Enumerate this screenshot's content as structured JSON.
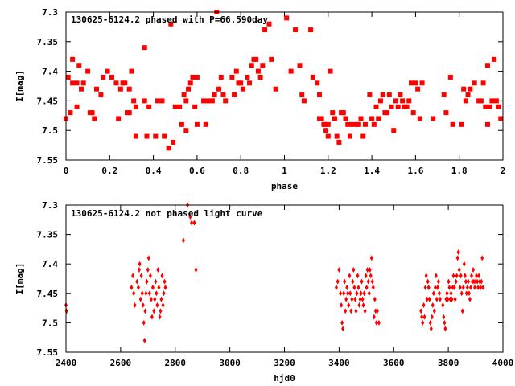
{
  "chart_data": [
    {
      "type": "scatter",
      "title": "130625-6124.2 phased with P=66.590day",
      "xlabel": "phase",
      "ylabel": "I[mag]",
      "xlim": [
        0,
        2
      ],
      "ylim": [
        7.3,
        7.55
      ],
      "y_inverted": true,
      "xticks": [
        "0",
        "0.2",
        "0.4",
        "0.6",
        "0.8",
        "1",
        "1.2",
        "1.4",
        "1.6",
        "1.8",
        "2"
      ],
      "xtick_values": [
        0,
        0.2,
        0.4,
        0.6,
        0.8,
        1.0,
        1.2,
        1.4,
        1.6,
        1.8,
        2.0
      ],
      "yticks": [
        "7.3",
        "7.35",
        "7.4",
        "7.45",
        "7.5",
        "7.55"
      ],
      "ytick_values": [
        7.3,
        7.35,
        7.4,
        7.45,
        7.5,
        7.55
      ],
      "grid": false,
      "color": "#ff0000",
      "marker": "filled-square-cross",
      "points": [
        [
          0.0,
          7.48
        ],
        [
          0.01,
          7.41
        ],
        [
          0.02,
          7.47
        ],
        [
          0.03,
          7.38
        ],
        [
          0.03,
          7.42
        ],
        [
          0.05,
          7.46
        ],
        [
          0.05,
          7.42
        ],
        [
          0.06,
          7.39
        ],
        [
          0.07,
          7.43
        ],
        [
          0.08,
          7.42
        ],
        [
          0.1,
          7.4
        ],
        [
          0.11,
          7.47
        ],
        [
          0.12,
          7.47
        ],
        [
          0.13,
          7.48
        ],
        [
          0.14,
          7.43
        ],
        [
          0.16,
          7.44
        ],
        [
          0.17,
          7.41
        ],
        [
          0.19,
          7.4
        ],
        [
          0.21,
          7.41
        ],
        [
          0.23,
          7.42
        ],
        [
          0.24,
          7.48
        ],
        [
          0.25,
          7.43
        ],
        [
          0.26,
          7.42
        ],
        [
          0.27,
          7.42
        ],
        [
          0.28,
          7.47
        ],
        [
          0.29,
          7.47
        ],
        [
          0.29,
          7.43
        ],
        [
          0.3,
          7.4
        ],
        [
          0.31,
          7.45
        ],
        [
          0.32,
          7.46
        ],
        [
          0.32,
          7.51
        ],
        [
          0.36,
          7.36
        ],
        [
          0.36,
          7.45
        ],
        [
          0.37,
          7.51
        ],
        [
          0.38,
          7.46
        ],
        [
          0.41,
          7.51
        ],
        [
          0.42,
          7.45
        ],
        [
          0.44,
          7.45
        ],
        [
          0.45,
          7.51
        ],
        [
          0.47,
          7.53
        ],
        [
          0.49,
          7.52
        ],
        [
          0.5,
          7.46
        ],
        [
          0.48,
          7.32
        ],
        [
          0.52,
          7.46
        ],
        [
          0.53,
          7.49
        ],
        [
          0.54,
          7.44
        ],
        [
          0.55,
          7.45
        ],
        [
          0.55,
          7.5
        ],
        [
          0.56,
          7.43
        ],
        [
          0.57,
          7.42
        ],
        [
          0.58,
          7.41
        ],
        [
          0.59,
          7.46
        ],
        [
          0.6,
          7.41
        ],
        [
          0.6,
          7.49
        ],
        [
          0.63,
          7.45
        ],
        [
          0.64,
          7.49
        ],
        [
          0.65,
          7.45
        ],
        [
          0.67,
          7.45
        ],
        [
          0.68,
          7.44
        ],
        [
          0.69,
          7.3
        ],
        [
          0.7,
          7.43
        ],
        [
          0.71,
          7.41
        ],
        [
          0.72,
          7.44
        ],
        [
          0.73,
          7.45
        ],
        [
          0.76,
          7.41
        ],
        [
          0.77,
          7.44
        ],
        [
          0.78,
          7.4
        ],
        [
          0.79,
          7.42
        ],
        [
          0.8,
          7.42
        ],
        [
          0.81,
          7.43
        ],
        [
          0.83,
          7.41
        ],
        [
          0.84,
          7.42
        ],
        [
          0.85,
          7.39
        ],
        [
          0.86,
          7.38
        ],
        [
          0.87,
          7.38
        ],
        [
          0.88,
          7.4
        ],
        [
          0.89,
          7.41
        ],
        [
          0.9,
          7.39
        ],
        [
          0.91,
          7.33
        ],
        [
          0.93,
          7.32
        ],
        [
          0.94,
          7.38
        ],
        [
          0.96,
          7.43
        ],
        [
          1.01,
          7.31
        ],
        [
          1.03,
          7.4
        ],
        [
          1.05,
          7.33
        ],
        [
          1.07,
          7.39
        ],
        [
          1.08,
          7.44
        ],
        [
          1.09,
          7.45
        ],
        [
          1.12,
          7.33
        ],
        [
          1.13,
          7.41
        ],
        [
          1.15,
          7.42
        ],
        [
          1.16,
          7.48
        ],
        [
          1.16,
          7.44
        ],
        [
          1.17,
          7.48
        ],
        [
          1.18,
          7.49
        ],
        [
          1.19,
          7.5
        ],
        [
          1.19,
          7.49
        ],
        [
          1.2,
          7.49
        ],
        [
          1.2,
          7.51
        ],
        [
          1.21,
          7.4
        ],
        [
          1.22,
          7.47
        ],
        [
          1.23,
          7.48
        ],
        [
          1.24,
          7.51
        ],
        [
          1.25,
          7.52
        ],
        [
          1.26,
          7.47
        ],
        [
          1.27,
          7.47
        ],
        [
          1.28,
          7.48
        ],
        [
          1.29,
          7.49
        ],
        [
          1.3,
          7.51
        ],
        [
          1.31,
          7.49
        ],
        [
          1.33,
          7.49
        ],
        [
          1.34,
          7.49
        ],
        [
          1.35,
          7.48
        ],
        [
          1.36,
          7.51
        ],
        [
          1.37,
          7.49
        ],
        [
          1.39,
          7.44
        ],
        [
          1.4,
          7.48
        ],
        [
          1.41,
          7.49
        ],
        [
          1.42,
          7.46
        ],
        [
          1.43,
          7.48
        ],
        [
          1.44,
          7.45
        ],
        [
          1.45,
          7.44
        ],
        [
          1.46,
          7.47
        ],
        [
          1.47,
          7.47
        ],
        [
          1.48,
          7.44
        ],
        [
          1.49,
          7.46
        ],
        [
          1.5,
          7.5
        ],
        [
          1.51,
          7.45
        ],
        [
          1.52,
          7.46
        ],
        [
          1.53,
          7.44
        ],
        [
          1.54,
          7.45
        ],
        [
          1.55,
          7.46
        ],
        [
          1.56,
          7.46
        ],
        [
          1.57,
          7.45
        ],
        [
          1.58,
          7.42
        ],
        [
          1.59,
          7.47
        ],
        [
          1.6,
          7.42
        ],
        [
          1.62,
          7.48
        ],
        [
          1.63,
          7.42
        ],
        [
          1.61,
          7.43
        ],
        [
          1.68,
          7.48
        ],
        [
          1.73,
          7.44
        ],
        [
          1.74,
          7.47
        ],
        [
          1.76,
          7.41
        ],
        [
          1.77,
          7.49
        ],
        [
          1.81,
          7.49
        ],
        [
          1.82,
          7.43
        ],
        [
          1.83,
          7.45
        ],
        [
          1.84,
          7.44
        ],
        [
          1.85,
          7.43
        ],
        [
          1.87,
          7.42
        ],
        [
          1.89,
          7.45
        ],
        [
          1.9,
          7.45
        ],
        [
          1.91,
          7.42
        ],
        [
          1.92,
          7.46
        ],
        [
          1.93,
          7.49
        ],
        [
          1.94,
          7.46
        ],
        [
          1.95,
          7.45
        ],
        [
          1.96,
          7.38
        ],
        [
          1.97,
          7.45
        ],
        [
          1.98,
          7.46
        ],
        [
          1.99,
          7.48
        ],
        [
          1.93,
          7.39
        ]
      ]
    },
    {
      "type": "scatter",
      "title": "130625-6124.2 not phased light curve",
      "xlabel": "hjd0",
      "ylabel": "I[mag]",
      "xlim": [
        2400,
        4000
      ],
      "ylim": [
        7.3,
        7.55
      ],
      "y_inverted": true,
      "xticks": [
        "2400",
        "2600",
        "2800",
        "3000",
        "3200",
        "3400",
        "3600",
        "3800",
        "4000"
      ],
      "xtick_values": [
        2400,
        2600,
        2800,
        3000,
        3200,
        3400,
        3600,
        3800,
        4000
      ],
      "yticks": [
        "7.3",
        "7.35",
        "7.4",
        "7.45",
        "7.5",
        "7.55"
      ],
      "ytick_values": [
        7.3,
        7.35,
        7.4,
        7.45,
        7.5,
        7.55
      ],
      "grid": false,
      "color": "#ff0000",
      "marker": "filled-diamond",
      "points": [
        [
          2400,
          7.47
        ],
        [
          2402,
          7.48
        ],
        [
          2640,
          7.44
        ],
        [
          2645,
          7.42
        ],
        [
          2648,
          7.45
        ],
        [
          2652,
          7.47
        ],
        [
          2660,
          7.43
        ],
        [
          2665,
          7.44
        ],
        [
          2668,
          7.41
        ],
        [
          2670,
          7.4
        ],
        [
          2673,
          7.46
        ],
        [
          2676,
          7.42
        ],
        [
          2679,
          7.45
        ],
        [
          2682,
          7.47
        ],
        [
          2685,
          7.5
        ],
        [
          2688,
          7.53
        ],
        [
          2690,
          7.48
        ],
        [
          2693,
          7.45
        ],
        [
          2696,
          7.43
        ],
        [
          2700,
          7.41
        ],
        [
          2703,
          7.39
        ],
        [
          2706,
          7.45
        ],
        [
          2709,
          7.42
        ],
        [
          2712,
          7.46
        ],
        [
          2715,
          7.49
        ],
        [
          2718,
          7.44
        ],
        [
          2722,
          7.48
        ],
        [
          2725,
          7.46
        ],
        [
          2728,
          7.43
        ],
        [
          2731,
          7.45
        ],
        [
          2734,
          7.47
        ],
        [
          2737,
          7.41
        ],
        [
          2740,
          7.44
        ],
        [
          2743,
          7.49
        ],
        [
          2746,
          7.48
        ],
        [
          2749,
          7.46
        ],
        [
          2752,
          7.42
        ],
        [
          2755,
          7.47
        ],
        [
          2758,
          7.45
        ],
        [
          2761,
          7.43
        ],
        [
          2764,
          7.44
        ],
        [
          2830,
          7.36
        ],
        [
          2845,
          7.3
        ],
        [
          2855,
          7.32
        ],
        [
          2860,
          7.33
        ],
        [
          2870,
          7.33
        ],
        [
          2876,
          7.41
        ],
        [
          3390,
          7.44
        ],
        [
          3395,
          7.43
        ],
        [
          3400,
          7.41
        ],
        [
          3405,
          7.45
        ],
        [
          3408,
          7.47
        ],
        [
          3411,
          7.5
        ],
        [
          3414,
          7.51
        ],
        [
          3417,
          7.45
        ],
        [
          3420,
          7.43
        ],
        [
          3423,
          7.48
        ],
        [
          3426,
          7.46
        ],
        [
          3429,
          7.44
        ],
        [
          3432,
          7.45
        ],
        [
          3435,
          7.47
        ],
        [
          3438,
          7.42
        ],
        [
          3441,
          7.45
        ],
        [
          3444,
          7.48
        ],
        [
          3447,
          7.46
        ],
        [
          3450,
          7.43
        ],
        [
          3453,
          7.41
        ],
        [
          3456,
          7.44
        ],
        [
          3459,
          7.46
        ],
        [
          3462,
          7.48
        ],
        [
          3465,
          7.45
        ],
        [
          3468,
          7.42
        ],
        [
          3471,
          7.44
        ],
        [
          3474,
          7.47
        ],
        [
          3477,
          7.46
        ],
        [
          3480,
          7.45
        ],
        [
          3483,
          7.43
        ],
        [
          3486,
          7.46
        ],
        [
          3489,
          7.47
        ],
        [
          3492,
          7.45
        ],
        [
          3495,
          7.48
        ],
        [
          3498,
          7.42
        ],
        [
          3501,
          7.44
        ],
        [
          3504,
          7.41
        ],
        [
          3507,
          7.43
        ],
        [
          3510,
          7.45
        ],
        [
          3513,
          7.41
        ],
        [
          3516,
          7.42
        ],
        [
          3519,
          7.39
        ],
        [
          3522,
          7.43
        ],
        [
          3525,
          7.44
        ],
        [
          3528,
          7.49
        ],
        [
          3531,
          7.46
        ],
        [
          3534,
          7.48
        ],
        [
          3537,
          7.5
        ],
        [
          3540,
          7.48
        ],
        [
          3546,
          7.5
        ],
        [
          3700,
          7.48
        ],
        [
          3703,
          7.49
        ],
        [
          3706,
          7.5
        ],
        [
          3710,
          7.47
        ],
        [
          3713,
          7.49
        ],
        [
          3716,
          7.44
        ],
        [
          3719,
          7.42
        ],
        [
          3722,
          7.46
        ],
        [
          3725,
          7.43
        ],
        [
          3728,
          7.44
        ],
        [
          3731,
          7.46
        ],
        [
          3734,
          7.5
        ],
        [
          3737,
          7.51
        ],
        [
          3740,
          7.49
        ],
        [
          3743,
          7.47
        ],
        [
          3746,
          7.45
        ],
        [
          3749,
          7.48
        ],
        [
          3752,
          7.44
        ],
        [
          3755,
          7.42
        ],
        [
          3758,
          7.46
        ],
        [
          3761,
          7.44
        ],
        [
          3764,
          7.43
        ],
        [
          3767,
          7.45
        ],
        [
          3770,
          7.46
        ],
        [
          3780,
          7.47
        ],
        [
          3783,
          7.49
        ],
        [
          3786,
          7.5
        ],
        [
          3789,
          7.51
        ],
        [
          3792,
          7.46
        ],
        [
          3795,
          7.45
        ],
        [
          3798,
          7.46
        ],
        [
          3801,
          7.43
        ],
        [
          3804,
          7.44
        ],
        [
          3807,
          7.46
        ],
        [
          3810,
          7.45
        ],
        [
          3813,
          7.46
        ],
        [
          3816,
          7.44
        ],
        [
          3819,
          7.42
        ],
        [
          3822,
          7.44
        ],
        [
          3825,
          7.46
        ],
        [
          3828,
          7.43
        ],
        [
          3831,
          7.42
        ],
        [
          3834,
          7.39
        ],
        [
          3837,
          7.38
        ],
        [
          3840,
          7.41
        ],
        [
          3843,
          7.44
        ],
        [
          3846,
          7.42
        ],
        [
          3849,
          7.45
        ],
        [
          3852,
          7.48
        ],
        [
          3855,
          7.44
        ],
        [
          3858,
          7.4
        ],
        [
          3861,
          7.42
        ],
        [
          3864,
          7.43
        ],
        [
          3867,
          7.45
        ],
        [
          3870,
          7.44
        ],
        [
          3873,
          7.43
        ],
        [
          3876,
          7.45
        ],
        [
          3879,
          7.46
        ],
        [
          3882,
          7.44
        ],
        [
          3885,
          7.42
        ],
        [
          3888,
          7.43
        ],
        [
          3891,
          7.41
        ],
        [
          3894,
          7.43
        ],
        [
          3897,
          7.44
        ],
        [
          3900,
          7.43
        ],
        [
          3903,
          7.42
        ],
        [
          3906,
          7.43
        ],
        [
          3909,
          7.44
        ],
        [
          3912,
          7.42
        ],
        [
          3915,
          7.43
        ],
        [
          3918,
          7.44
        ],
        [
          3921,
          7.43
        ],
        [
          3924,
          7.39
        ],
        [
          3927,
          7.44
        ]
      ]
    }
  ]
}
